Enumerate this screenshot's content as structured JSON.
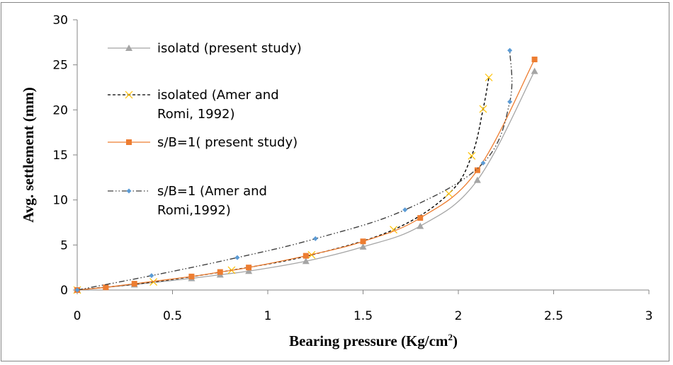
{
  "chart_data": {
    "type": "line",
    "title": "",
    "xlabel": "Bearing pressure (Kg/cm²)",
    "xlabel_main": "Bearing pressure (Kg/cm",
    "xlabel_sup": "2",
    "xlabel_end": ")",
    "ylabel": "Avg. settlement (mm)",
    "xlim": [
      0,
      3
    ],
    "ylim": [
      0,
      30
    ],
    "x_ticks": [
      "0",
      "0.5",
      "1",
      "1.5",
      "2",
      "2.5",
      "3"
    ],
    "y_ticks": [
      "0",
      "5",
      "10",
      "15",
      "20",
      "25",
      "30"
    ],
    "grid": false,
    "legend_position": "top-left",
    "series": [
      {
        "name": "isolatd (present study)",
        "legend_lines": [
          "isolatd (present study)"
        ],
        "color": "#a5a5a5",
        "line_color": "#a5a5a5",
        "dash": "solid",
        "marker": "triangle",
        "x": [
          0,
          0.15,
          0.3,
          0.6,
          0.75,
          0.9,
          1.2,
          1.5,
          1.8,
          2.1,
          2.4
        ],
        "y": [
          0,
          0.3,
          0.6,
          1.3,
          1.7,
          2.1,
          3.2,
          4.8,
          7.1,
          12.2,
          24.3
        ]
      },
      {
        "name": "isolated (Amer and Romi, 1992)",
        "legend_lines": [
          "isolated (Amer and",
          "Romi, 1992)"
        ],
        "color": "#ffc000",
        "line_color": "#000000",
        "dash": "dashed",
        "marker": "x",
        "x": [
          0,
          0.4,
          0.81,
          1.23,
          1.66,
          1.95,
          2.07,
          2.13,
          2.16
        ],
        "y": [
          0,
          0.9,
          2.2,
          3.9,
          6.7,
          10.7,
          14.9,
          20.1,
          23.6
        ]
      },
      {
        "name": "s/B=1( present study)",
        "legend_lines": [
          "s/B=1( present study)"
        ],
        "color": "#ed7d31",
        "line_color": "#ed7d31",
        "dash": "solid",
        "marker": "square",
        "x": [
          0,
          0.15,
          0.3,
          0.6,
          0.75,
          0.9,
          1.2,
          1.5,
          1.8,
          2.1,
          2.4
        ],
        "y": [
          0,
          0.3,
          0.7,
          1.5,
          2.0,
          2.5,
          3.8,
          5.4,
          8.0,
          13.3,
          25.6
        ]
      },
      {
        "name": "s/B=1 (Amer and Romi,1992)",
        "legend_lines": [
          "s/B=1 (Amer and",
          "Romi,1992)"
        ],
        "color": "#5b9bd5",
        "line_color": "#404040",
        "dash": "dashdotdot",
        "marker": "diamond",
        "x": [
          0,
          0.39,
          0.84,
          1.25,
          1.72,
          2.13,
          2.27,
          2.27
        ],
        "y": [
          0,
          1.6,
          3.6,
          5.7,
          8.9,
          14.1,
          20.9,
          26.6
        ]
      }
    ]
  }
}
